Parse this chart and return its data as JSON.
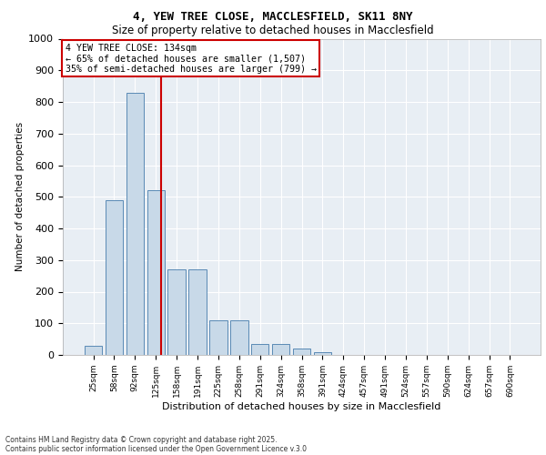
{
  "title1": "4, YEW TREE CLOSE, MACCLESFIELD, SK11 8NY",
  "title2": "Size of property relative to detached houses in Macclesfield",
  "xlabel": "Distribution of detached houses by size in Macclesfield",
  "ylabel": "Number of detached properties",
  "categories": [
    "25sqm",
    "58sqm",
    "92sqm",
    "125sqm",
    "158sqm",
    "191sqm",
    "225sqm",
    "258sqm",
    "291sqm",
    "324sqm",
    "358sqm",
    "391sqm",
    "424sqm",
    "457sqm",
    "491sqm",
    "524sqm",
    "557sqm",
    "590sqm",
    "624sqm",
    "657sqm",
    "690sqm"
  ],
  "values": [
    30,
    490,
    830,
    520,
    270,
    270,
    110,
    110,
    35,
    35,
    20,
    10,
    0,
    0,
    0,
    0,
    0,
    0,
    0,
    0,
    0
  ],
  "bar_color": "#c8d9e8",
  "bar_edge_color": "#5a8ab5",
  "vline_color": "#cc0000",
  "vline_x": 3.27,
  "ylim": [
    0,
    1000
  ],
  "yticks": [
    0,
    100,
    200,
    300,
    400,
    500,
    600,
    700,
    800,
    900,
    1000
  ],
  "annotation_title": "4 YEW TREE CLOSE: 134sqm",
  "annotation_line1": "← 65% of detached houses are smaller (1,507)",
  "annotation_line2": "35% of semi-detached houses are larger (799) →",
  "annotation_box_color": "#ffffff",
  "annotation_edge_color": "#cc0000",
  "footer1": "Contains HM Land Registry data © Crown copyright and database right 2025.",
  "footer2": "Contains public sector information licensed under the Open Government Licence v.3.0",
  "background_color": "#e8eef4",
  "grid_color": "#ffffff"
}
